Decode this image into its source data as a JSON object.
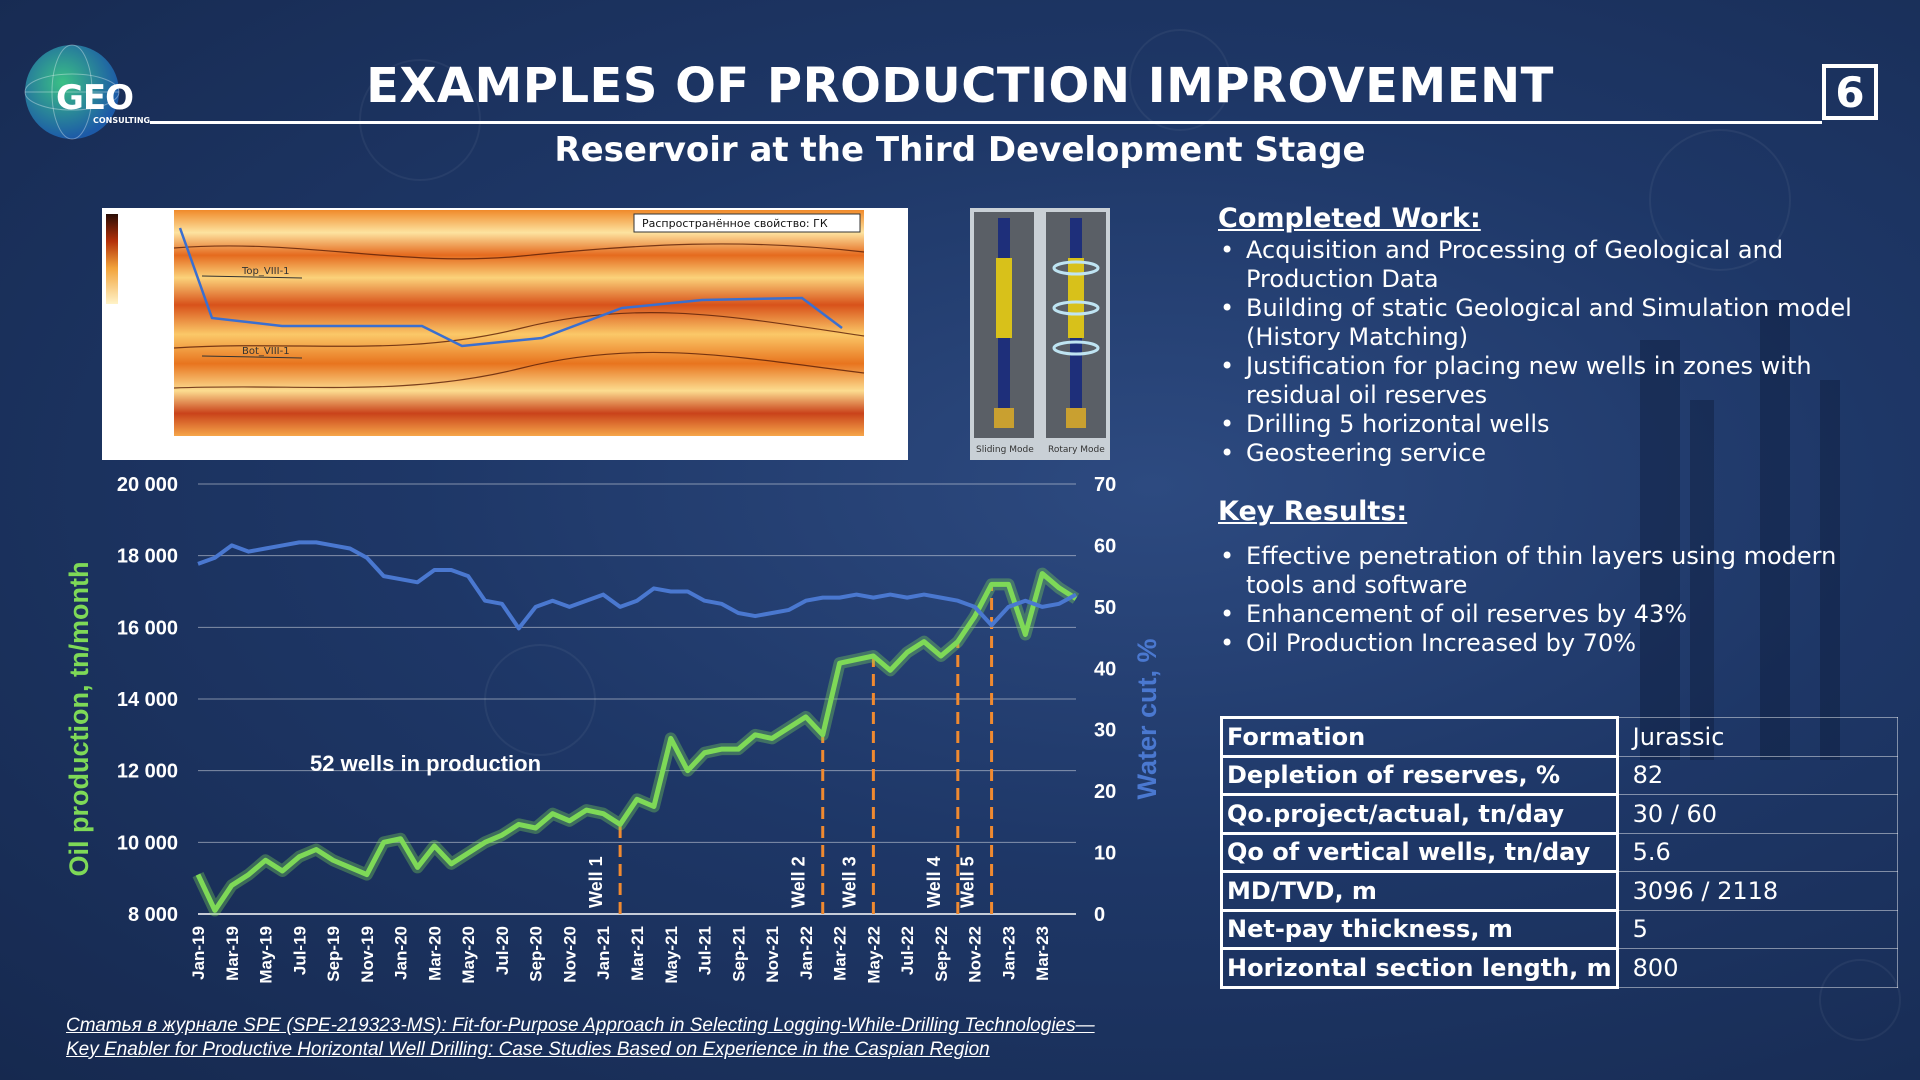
{
  "header": {
    "logo_text": "GEO",
    "logo_subtext": "CONSULTING",
    "title": "EXAMPLES OF PRODUCTION IMPROVEMENT",
    "page_number": "6",
    "subtitle": "Reservoir at the Third Development Stage"
  },
  "cross_section": {
    "legend_label": "Распространённое свойство: ГК",
    "layer_top": "Top_VIII-1",
    "layer_bottom": "Bot_VIII-1"
  },
  "tool_image": {
    "label_left": "Sliding Mode",
    "label_right": "Rotary Mode"
  },
  "completed_work": {
    "heading": "Completed Work:",
    "items": [
      "Acquisition and Processing of Geological and Production Data",
      "Building of static Geological and Simulation model (History Matching)",
      "Justification for placing new wells in zones with residual oil reserves",
      "Drilling 5 horizontal wells",
      "Geosteering service"
    ]
  },
  "key_results": {
    "heading": "Key Results:",
    "items": [
      "Effective penetration of thin layers using modern tools and software",
      "Enhancement of oil reserves by 43%",
      "Oil Production Increased by 70%"
    ]
  },
  "params_table": [
    {
      "key": "Formation",
      "value": "Jurassic"
    },
    {
      "key": "Depletion of reserves, %",
      "value": "82"
    },
    {
      "key": "Qo.project/actual, tn/day",
      "value": "30 / 60"
    },
    {
      "key": "Qo of vertical wells, tn/day",
      "value": "5.6"
    },
    {
      "key": "MD/TVD, m",
      "value": "3096 / 2118"
    },
    {
      "key": "Net-pay thickness, m",
      "value": "5"
    },
    {
      "key": "Horizontal section length, m",
      "value": "800"
    }
  ],
  "footnote": {
    "line1": "Статья в журнале SPE (SPE-219323-MS): Fit-for-Purpose Approach in Selecting Logging-While-Drilling Technologies—",
    "line2": "Key Enabler for Productive Horizontal Well Drilling: Case Studies Based on Experience in the Caspian Region"
  },
  "colors": {
    "oil": "#7ed957",
    "water": "#4a78d0",
    "well_marker": "#f08a30"
  },
  "chart_data": {
    "type": "line",
    "title": "",
    "annotation": "52 wells in production",
    "ylabel": "Oil production, tn/month",
    "y2label": "Water cut, %",
    "ylim": [
      8000,
      20000
    ],
    "y2lim": [
      0,
      70
    ],
    "y_ticks": [
      "8 000",
      "10 000",
      "12 000",
      "14 000",
      "16 000",
      "18 000",
      "20 000"
    ],
    "y2_ticks": [
      "0",
      "10",
      "20",
      "30",
      "40",
      "50",
      "60",
      "70"
    ],
    "x_tick_labels": [
      "Jan-19",
      "Mar-19",
      "May-19",
      "Jul-19",
      "Sep-19",
      "Nov-19",
      "Jan-20",
      "Mar-20",
      "May-20",
      "Jul-20",
      "Sep-20",
      "Nov-20",
      "Jan-21",
      "Mar-21",
      "May-21",
      "Jul-21",
      "Sep-21",
      "Nov-21",
      "Jan-22",
      "Mar-22",
      "May-22",
      "Jul-22",
      "Sep-22",
      "Nov-22",
      "Jan-23",
      "Mar-23"
    ],
    "months": 53,
    "series": [
      {
        "name": "Oil production, tn/month",
        "axis": "left",
        "values": [
          9100,
          8100,
          8800,
          9100,
          9500,
          9200,
          9600,
          9800,
          9500,
          9300,
          9100,
          10000,
          10100,
          9300,
          9900,
          9400,
          9700,
          10000,
          10200,
          10500,
          10400,
          10800,
          10600,
          10900,
          10800,
          10500,
          11200,
          11000,
          12900,
          12000,
          12500,
          12600,
          12600,
          13000,
          12900,
          13200,
          13500,
          13000,
          15000,
          15100,
          15200,
          14800,
          15300,
          15600,
          15200,
          15600,
          16300,
          17200,
          17200,
          15800,
          17500,
          17100,
          16800
        ]
      },
      {
        "name": "Water cut, %",
        "axis": "right",
        "values": [
          57,
          58,
          60,
          59,
          59.5,
          60,
          60.5,
          60.5,
          60,
          59.5,
          58,
          55,
          54.5,
          54,
          56,
          56,
          55,
          51,
          50.5,
          46.5,
          50,
          51,
          50,
          51,
          52,
          50,
          51,
          53,
          52.5,
          52.5,
          51,
          50.5,
          49,
          48.5,
          49,
          49.5,
          51,
          51.5,
          51.5,
          52,
          51.5,
          52,
          51.5,
          52,
          51.5,
          51,
          50,
          47,
          50,
          51,
          50,
          50.5,
          52
        ]
      }
    ],
    "wells": [
      {
        "label": "Well 1",
        "month": 25
      },
      {
        "label": "Well 2",
        "month": 37
      },
      {
        "label": "Well 3",
        "month": 40
      },
      {
        "label": "Well 4",
        "month": 45
      },
      {
        "label": "Well 5",
        "month": 47
      }
    ]
  }
}
